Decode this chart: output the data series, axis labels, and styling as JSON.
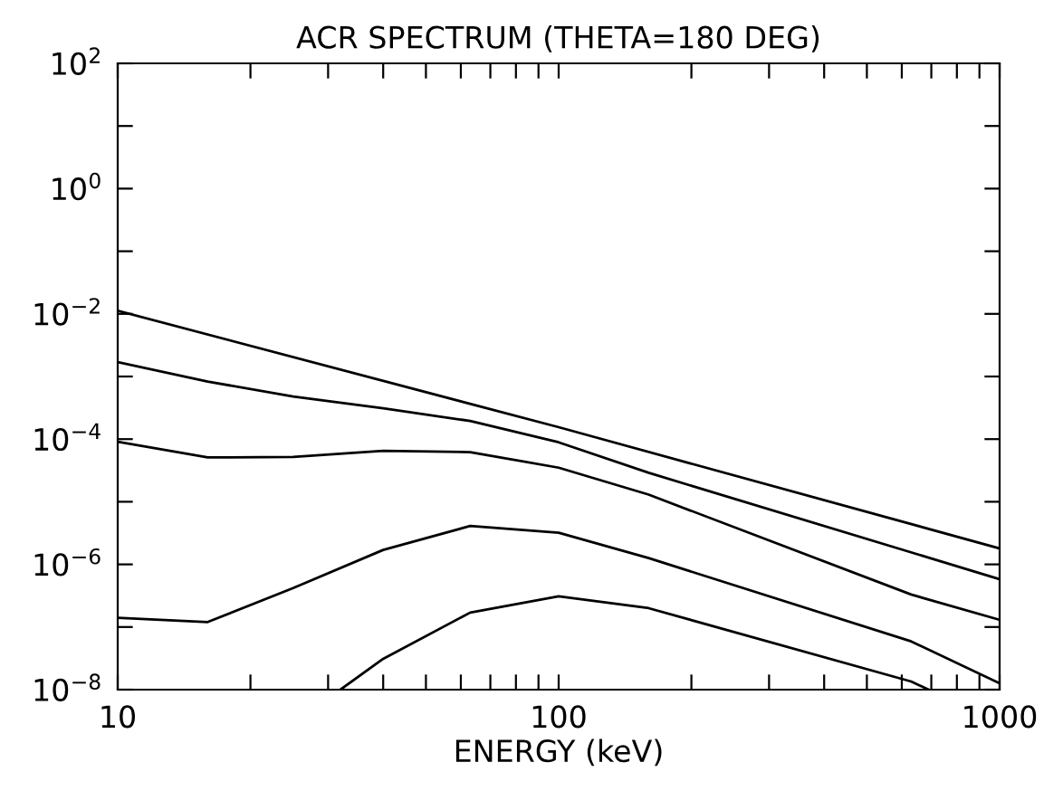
{
  "chart_data": {
    "type": "line",
    "title": "ACR SPECTRUM (THETA=180 DEG)",
    "xlabel": "ENERGY (keV)",
    "log": "xy",
    "grid": false,
    "marker": "none",
    "line_style": "solid",
    "xlim": [
      10,
      1000
    ],
    "ylim": [
      1e-08,
      100
    ],
    "xticks": [
      10,
      {
        "value": 20,
        "label": null
      },
      {
        "value": 30,
        "label": null
      },
      {
        "value": 40,
        "label": null
      },
      {
        "value": 50,
        "label": null
      },
      {
        "value": 60,
        "label": null
      },
      {
        "value": 70,
        "label": null
      },
      {
        "value": 80,
        "label": null
      },
      {
        "value": 90,
        "label": null
      },
      100,
      {
        "value": 200,
        "label": null
      },
      {
        "value": 300,
        "label": null
      },
      {
        "value": 400,
        "label": null
      },
      {
        "value": 500,
        "label": null
      },
      {
        "value": 600,
        "label": null
      },
      {
        "value": 700,
        "label": null
      },
      {
        "value": 800,
        "label": null
      },
      {
        "value": 900,
        "label": null
      },
      1000
    ],
    "yticks": [
      {
        "value": 1e-08,
        "label": "10$^{−8}$"
      },
      {
        "value": 1e-07,
        "label": null
      },
      {
        "value": 1e-06,
        "label": "10$^{−6}$"
      },
      {
        "value": 1e-05,
        "label": null
      },
      {
        "value": 0.0001,
        "label": "10$^{−4}$"
      },
      {
        "value": 0.001,
        "label": null
      },
      {
        "value": 0.01,
        "label": "10$^{−2}$"
      },
      {
        "value": 0.1,
        "label": null
      },
      {
        "value": 1,
        "label": "10$^{0}$"
      },
      {
        "value": 10,
        "label": null
      },
      {
        "value": 100,
        "label": "10$^{2}$"
      }
    ],
    "series": [
      {
        "color": "#000000",
        "x": [
          10,
          100,
          1000
        ],
        "values": [
          0.0112,
          0.000155,
          1.8e-06
        ]
      },
      {
        "color": "#000000",
        "x": [
          10,
          16,
          25,
          40,
          63,
          100,
          160,
          1000
        ],
        "values": [
          0.0017,
          0.00083,
          0.00048,
          0.00031,
          0.000195,
          8.9e-05,
          2.9e-05,
          5.8e-07
        ]
      },
      {
        "color": "#000000",
        "x": [
          10,
          16,
          25,
          40,
          63,
          100,
          160,
          630,
          1000
        ],
        "values": [
          9.1e-05,
          5.1e-05,
          5.2e-05,
          6.5e-05,
          6.2e-05,
          3.5e-05,
          1.3e-05,
          3.3e-07,
          1.3e-07
        ]
      },
      {
        "color": "#000000",
        "x": [
          10,
          16,
          25,
          40,
          63,
          100,
          160,
          630,
          1000
        ],
        "values": [
          1.4e-07,
          1.2e-07,
          4.2e-07,
          1.7e-06,
          4.1e-06,
          3.2e-06,
          1.26e-06,
          5.9e-08,
          1.26e-08
        ]
      },
      {
        "color": "#000000",
        "x": [
          32,
          40,
          63,
          100,
          160,
          630,
          690
        ],
        "values": [
          1e-08,
          3.1e-08,
          1.7e-07,
          3.1e-07,
          2e-07,
          1.35e-08,
          1e-08
        ]
      }
    ]
  }
}
